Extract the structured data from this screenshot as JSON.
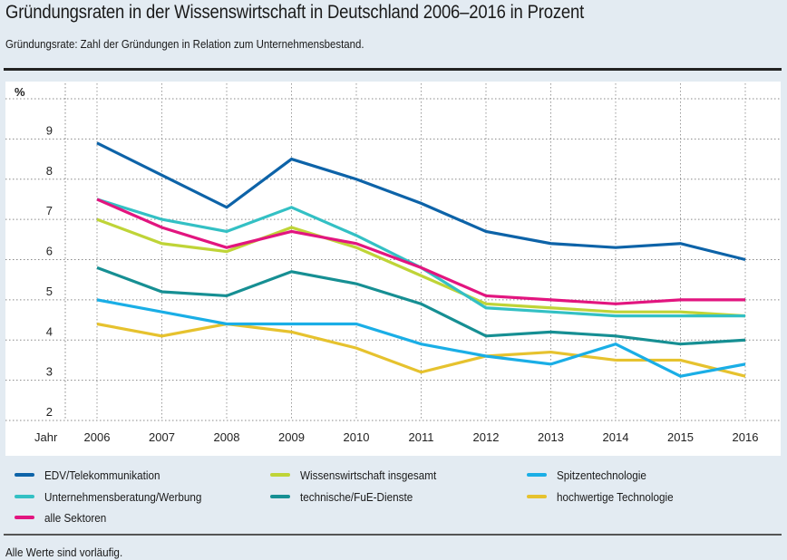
{
  "header": {
    "title": "Gründungsraten in der Wissenswirtschaft in Deutschland 2006–2016 in Prozent",
    "subtitle": "Gründungsrate: Zahl der Gründungen in Relation zum Unternehmensbestand."
  },
  "footnote": "Alle Werte sind vorläufig.",
  "chart_data": {
    "type": "line",
    "title": "Gründungsraten in der Wissenswirtschaft in Deutschland 2006–2016 in Prozent",
    "xlabel": "Jahr",
    "ylabel": "%",
    "x": [
      "2006",
      "2007",
      "2008",
      "2009",
      "2010",
      "2011",
      "2012",
      "2013",
      "2014",
      "2015",
      "2016"
    ],
    "ylim": [
      2,
      10
    ],
    "yticks": [
      "2",
      "3",
      "4",
      "5",
      "6",
      "7",
      "8",
      "9"
    ],
    "grid": true,
    "legend_position": "bottom",
    "series": [
      {
        "name": "EDV/Telekommunikation",
        "color": "#0d63a8",
        "values": [
          8.9,
          8.1,
          7.3,
          8.5,
          8.0,
          7.4,
          6.7,
          6.4,
          6.3,
          6.4,
          6.0
        ]
      },
      {
        "name": "Unternehmensberatung/Werbung",
        "color": "#33c0c4",
        "values": [
          7.5,
          7.0,
          6.7,
          7.3,
          6.6,
          5.8,
          4.8,
          4.7,
          4.6,
          4.6,
          4.6
        ]
      },
      {
        "name": "Wissenswirtschaft insgesamt",
        "color": "#bfd437",
        "values": [
          7.0,
          6.4,
          6.2,
          6.8,
          6.3,
          5.6,
          4.9,
          4.8,
          4.7,
          4.7,
          4.6
        ]
      },
      {
        "name": "technische/FuE-Dienste",
        "color": "#168f93",
        "values": [
          5.8,
          5.2,
          5.1,
          5.7,
          5.4,
          4.9,
          4.1,
          4.2,
          4.1,
          3.9,
          4.0
        ]
      },
      {
        "name": "Spitzentechnologie",
        "color": "#1aaee6",
        "values": [
          5.0,
          4.7,
          4.4,
          4.4,
          4.4,
          3.9,
          3.6,
          3.4,
          3.9,
          3.1,
          3.4
        ]
      },
      {
        "name": "hochwertige Technologie",
        "color": "#e6c22e",
        "values": [
          4.4,
          4.1,
          4.4,
          4.2,
          3.8,
          3.2,
          3.6,
          3.7,
          3.5,
          3.5,
          3.1
        ]
      },
      {
        "name": "alle Sektoren",
        "color": "#e2157f",
        "values": [
          7.5,
          6.8,
          6.3,
          6.7,
          6.4,
          5.8,
          5.1,
          5.0,
          4.9,
          5.0,
          5.0
        ]
      }
    ]
  },
  "legend": [
    {
      "label": "EDV/Telekommunikation",
      "color": "#0d63a8"
    },
    {
      "label": "Wissenswirtschaft insgesamt",
      "color": "#bfd437"
    },
    {
      "label": "Spitzentechnologie",
      "color": "#1aaee6"
    },
    {
      "label": "Unternehmensberatung/Werbung",
      "color": "#33c0c4"
    },
    {
      "label": "technische/FuE-Dienste",
      "color": "#168f93"
    },
    {
      "label": "hochwertige Technologie",
      "color": "#e6c22e"
    },
    {
      "label": "alle Sektoren",
      "color": "#e2157f"
    }
  ]
}
